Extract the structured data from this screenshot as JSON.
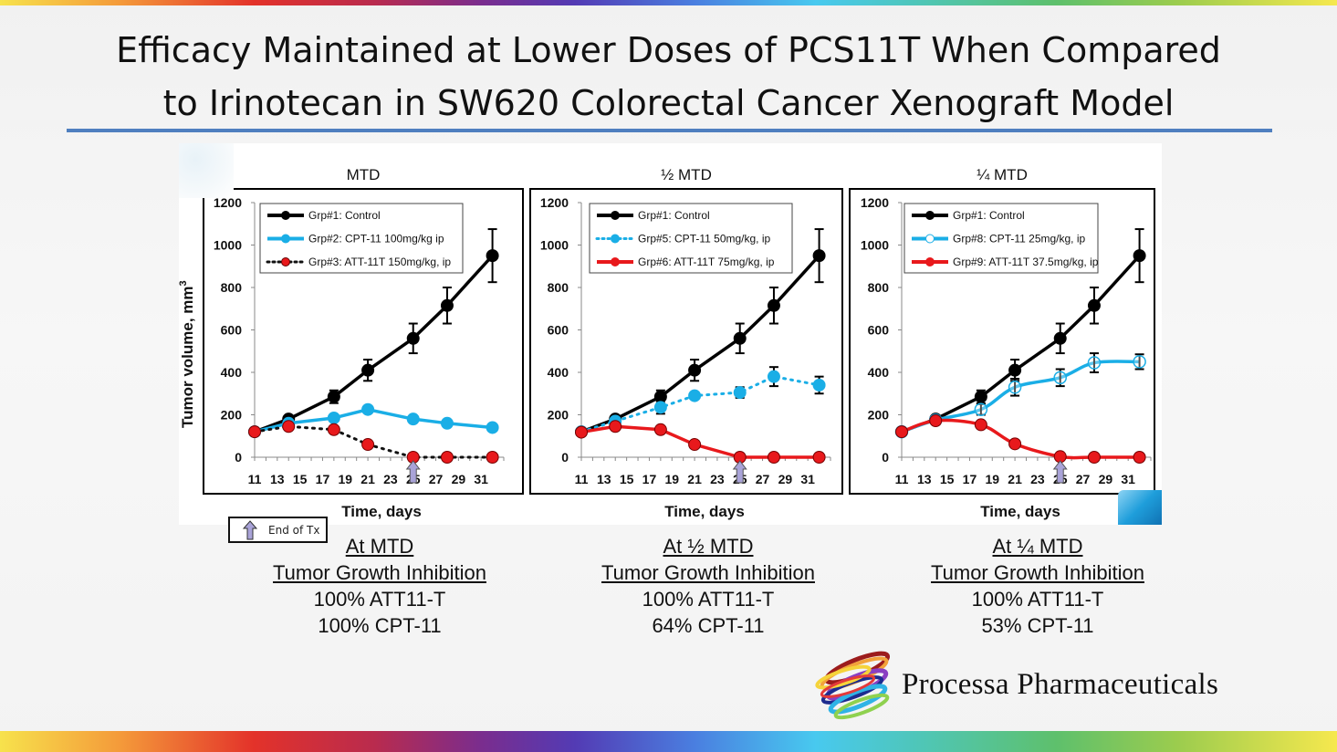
{
  "slide": {
    "title_line1": "Efficacy Maintained at Lower Doses of PCS11T When Compared",
    "title_line2": "to Irinotecan in SW620 Colorectal Cancer Xenograft Model",
    "ylabel": "Tumor volume, mm",
    "ylabel_sup": "3",
    "xlabel": "Time, days",
    "end_of_tx_label": "End of Tx",
    "company": "Processa Pharmaceuticals",
    "colors": {
      "control": "#000000",
      "cpt11": "#1aaee6",
      "att11t": "#e8191c",
      "rule": "#4f7fbf",
      "arrow": "#a9a3d8"
    }
  },
  "summaries": [
    {
      "heading": "At MTD",
      "subheading": "Tumor Growth Inhibition",
      "line1": "100% ATT11-T",
      "line2": "100% CPT-11"
    },
    {
      "heading": "At ½ MTD",
      "subheading": "Tumor Growth Inhibition",
      "line1": "100% ATT11-T",
      "line2": "64% CPT-11"
    },
    {
      "heading": "At ¼ MTD",
      "subheading": "Tumor Growth Inhibition",
      "line1": "100% ATT11-T",
      "line2": "53% CPT-11"
    }
  ],
  "chart_data": [
    {
      "type": "line",
      "title": "MTD",
      "xlabel": "Time, days",
      "ylabel": "Tumor volume, mm3",
      "xlim": [
        11,
        33
      ],
      "ylim": [
        0,
        1200
      ],
      "xticks": [
        11,
        13,
        15,
        17,
        19,
        21,
        23,
        25,
        27,
        29,
        31
      ],
      "yticks": [
        0,
        200,
        400,
        600,
        800,
        1000,
        1200
      ],
      "legend": "top-left",
      "end_of_treatment_day": 25,
      "series": [
        {
          "name": "Grp#1: Control",
          "color": "#000000",
          "style": "solid",
          "marker": "filled",
          "x": [
            11,
            14,
            18,
            21,
            25,
            28,
            32
          ],
          "y": [
            120,
            180,
            285,
            410,
            560,
            715,
            950
          ],
          "err": [
            0,
            15,
            30,
            50,
            70,
            85,
            125
          ]
        },
        {
          "name": "Grp#2: CPT-11 100mg/kg ip",
          "color": "#1aaee6",
          "style": "solid",
          "marker": "filled",
          "x": [
            11,
            14,
            18,
            21,
            25,
            28,
            32
          ],
          "y": [
            120,
            160,
            185,
            225,
            180,
            160,
            140
          ],
          "err": [
            0,
            0,
            0,
            15,
            0,
            0,
            0
          ]
        },
        {
          "name": "Grp#3: ATT-11T 150mg/kg, ip",
          "color": "#e8191c",
          "style": "dotted",
          "marker": "red-filled",
          "x": [
            11,
            14,
            18,
            21,
            25,
            28,
            32
          ],
          "y": [
            120,
            145,
            130,
            60,
            0,
            0,
            0
          ],
          "err": [
            0,
            0,
            0,
            0,
            0,
            0,
            0
          ]
        }
      ]
    },
    {
      "type": "line",
      "title": "½ MTD",
      "xlabel": "Time, days",
      "ylabel": "Tumor volume, mm3",
      "xlim": [
        11,
        33
      ],
      "ylim": [
        0,
        1200
      ],
      "xticks": [
        11,
        13,
        15,
        17,
        19,
        21,
        23,
        25,
        27,
        29,
        31
      ],
      "yticks": [
        0,
        200,
        400,
        600,
        800,
        1000,
        1200
      ],
      "legend": "top-left",
      "end_of_treatment_day": 25,
      "series": [
        {
          "name": "Grp#1: Control",
          "color": "#000000",
          "style": "solid",
          "marker": "filled",
          "x": [
            11,
            14,
            18,
            21,
            25,
            28,
            32
          ],
          "y": [
            120,
            180,
            285,
            410,
            560,
            715,
            950
          ],
          "err": [
            0,
            15,
            30,
            50,
            70,
            85,
            125
          ]
        },
        {
          "name": "Grp#5: CPT-11 50mg/kg, ip",
          "color": "#1aaee6",
          "style": "dotted",
          "marker": "filled",
          "x": [
            11,
            14,
            18,
            21,
            25,
            28,
            32
          ],
          "y": [
            120,
            170,
            235,
            290,
            305,
            380,
            340
          ],
          "err": [
            0,
            0,
            30,
            0,
            25,
            45,
            40
          ]
        },
        {
          "name": "Grp#6: ATT-11T 75mg/kg, ip",
          "color": "#e8191c",
          "style": "solid",
          "marker": "filled",
          "x": [
            11,
            14,
            18,
            21,
            25,
            28,
            32
          ],
          "y": [
            118,
            145,
            130,
            60,
            0,
            0,
            0
          ],
          "err": [
            0,
            0,
            0,
            0,
            0,
            0,
            0
          ]
        }
      ]
    },
    {
      "type": "line",
      "title": "¼ MTD",
      "xlabel": "Time, days",
      "ylabel": "Tumor volume, mm3",
      "xlim": [
        11,
        33
      ],
      "ylim": [
        0,
        1200
      ],
      "xticks": [
        11,
        13,
        15,
        17,
        19,
        21,
        23,
        25,
        27,
        29,
        31
      ],
      "yticks": [
        0,
        200,
        400,
        600,
        800,
        1000,
        1200
      ],
      "legend": "top-left",
      "end_of_treatment_day": 25,
      "series": [
        {
          "name": "Grp#1: Control",
          "color": "#000000",
          "style": "solid",
          "marker": "filled",
          "x": [
            11,
            14,
            18,
            21,
            25,
            28,
            32
          ],
          "y": [
            120,
            180,
            285,
            410,
            560,
            715,
            950
          ],
          "err": [
            0,
            15,
            30,
            50,
            70,
            85,
            125
          ]
        },
        {
          "name": "Grp#8: CPT-11 25mg/kg, ip",
          "color": "#1aaee6",
          "style": "smooth",
          "marker": "open",
          "x": [
            11,
            14,
            18,
            21,
            25,
            28,
            32
          ],
          "y": [
            120,
            175,
            225,
            330,
            375,
            445,
            450
          ],
          "err": [
            0,
            0,
            25,
            40,
            40,
            45,
            35
          ]
        },
        {
          "name": "Grp#9: ATT-11T 37.5mg/kg, ip",
          "color": "#e8191c",
          "style": "smooth",
          "marker": "filled",
          "x": [
            11,
            14,
            18,
            21,
            25,
            28,
            32
          ],
          "y": [
            120,
            172,
            153,
            63,
            3,
            0,
            0
          ],
          "err": [
            0,
            0,
            0,
            0,
            0,
            0,
            0
          ]
        }
      ]
    }
  ]
}
